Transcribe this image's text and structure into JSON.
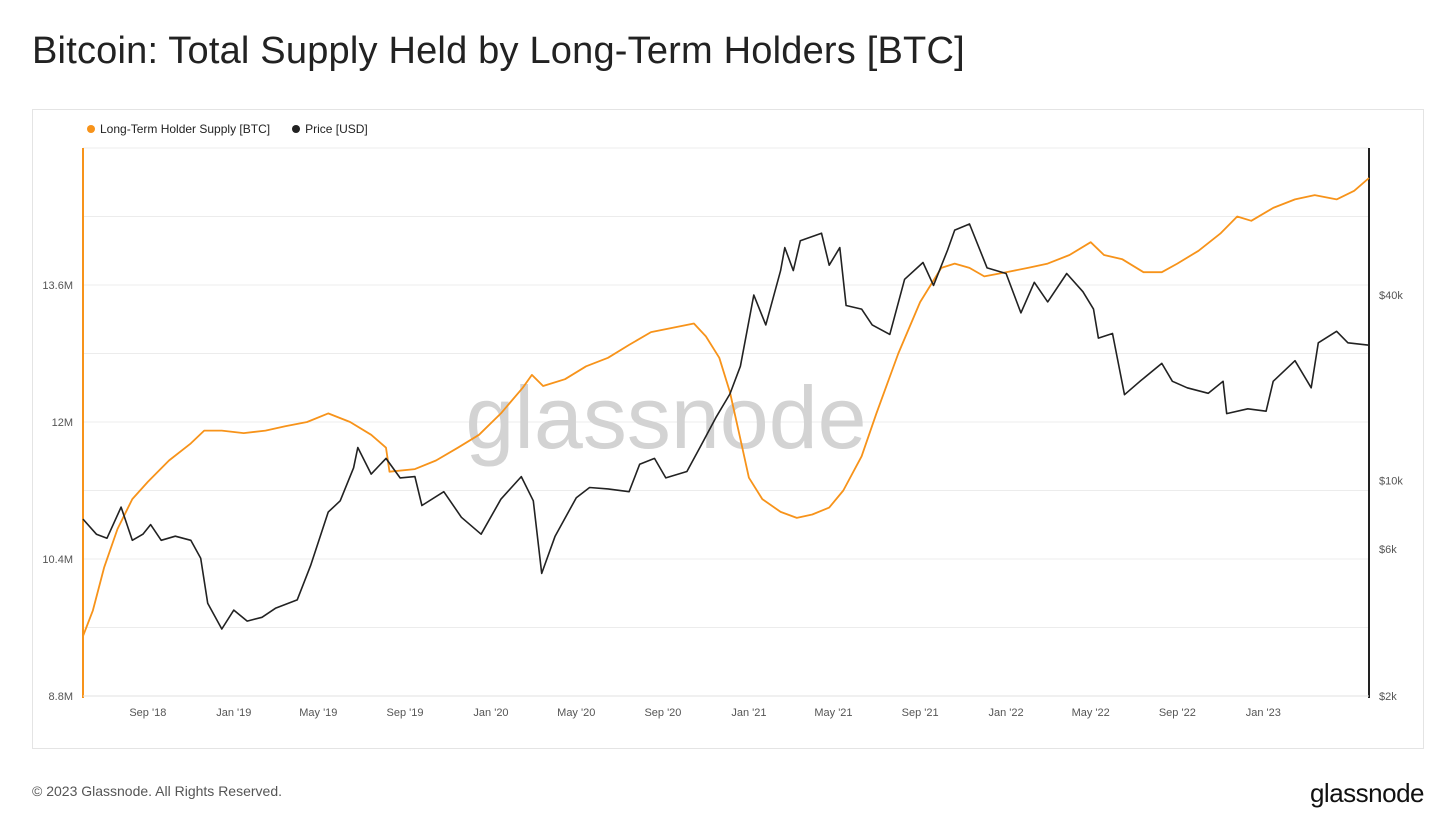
{
  "header": {
    "title": "Bitcoin: Total Supply Held by Long-Term Holders [BTC]"
  },
  "footer": {
    "copyright": "© 2023 Glassnode. All Rights Reserved.",
    "logo_text": "glassnode"
  },
  "chart_data": {
    "type": "line",
    "watermark": "glassnode",
    "legend_position": "top-left",
    "grid": true,
    "x_ticks": [
      "Sep '18",
      "Jan '19",
      "May '19",
      "Sep '19",
      "Jan '20",
      "May '20",
      "Sep '20",
      "Jan '21",
      "May '21",
      "Sep '21",
      "Jan '22",
      "May '22",
      "Sep '22",
      "Jan '23"
    ],
    "x_range": [
      "2018-06-01",
      "2023-05-31"
    ],
    "y_left": {
      "ticks": [
        "8.8M",
        "10.4M",
        "12M",
        "13.6M"
      ],
      "range": [
        8800000,
        15200000
      ],
      "color": "#f7931a"
    },
    "y_right": {
      "ticks": [
        "$2k",
        "$6k",
        "$10k",
        "$40k"
      ],
      "scale": "log",
      "range": [
        2000,
        120000
      ],
      "color": "#222222"
    },
    "series": [
      {
        "name": "Long-Term Holder Supply [BTC]",
        "color": "#f7931a",
        "axis": "left",
        "points": [
          [
            "2018-06-01",
            9.5
          ],
          [
            "2018-06-15",
            9.8
          ],
          [
            "2018-07-01",
            10.3
          ],
          [
            "2018-07-20",
            10.75
          ],
          [
            "2018-08-10",
            11.1
          ],
          [
            "2018-09-01",
            11.3
          ],
          [
            "2018-10-01",
            11.55
          ],
          [
            "2018-11-01",
            11.75
          ],
          [
            "2018-11-20",
            11.9
          ],
          [
            "2018-12-15",
            11.9
          ],
          [
            "2019-01-15",
            11.87
          ],
          [
            "2019-02-15",
            11.9
          ],
          [
            "2019-03-15",
            11.95
          ],
          [
            "2019-04-15",
            12.0
          ],
          [
            "2019-05-15",
            12.1
          ],
          [
            "2019-06-15",
            12.0
          ],
          [
            "2019-07-15",
            11.85
          ],
          [
            "2019-08-05",
            11.7
          ],
          [
            "2019-08-10",
            11.42
          ],
          [
            "2019-09-15",
            11.45
          ],
          [
            "2019-10-15",
            11.55
          ],
          [
            "2019-11-15",
            11.7
          ],
          [
            "2019-12-15",
            11.85
          ],
          [
            "2020-01-15",
            12.1
          ],
          [
            "2020-02-15",
            12.4
          ],
          [
            "2020-02-28",
            12.55
          ],
          [
            "2020-03-15",
            12.42
          ],
          [
            "2020-04-15",
            12.5
          ],
          [
            "2020-05-15",
            12.65
          ],
          [
            "2020-06-15",
            12.75
          ],
          [
            "2020-07-15",
            12.9
          ],
          [
            "2020-08-15",
            13.05
          ],
          [
            "2020-09-15",
            13.1
          ],
          [
            "2020-10-15",
            13.15
          ],
          [
            "2020-11-01",
            13.0
          ],
          [
            "2020-11-20",
            12.75
          ],
          [
            "2020-12-05",
            12.35
          ],
          [
            "2020-12-20",
            11.8
          ],
          [
            "2021-01-01",
            11.35
          ],
          [
            "2021-01-20",
            11.1
          ],
          [
            "2021-02-15",
            10.95
          ],
          [
            "2021-03-10",
            10.88
          ],
          [
            "2021-04-01",
            10.92
          ],
          [
            "2021-04-25",
            11.0
          ],
          [
            "2021-05-15",
            11.2
          ],
          [
            "2021-06-10",
            11.6
          ],
          [
            "2021-07-01",
            12.1
          ],
          [
            "2021-08-01",
            12.8
          ],
          [
            "2021-09-01",
            13.4
          ],
          [
            "2021-10-01",
            13.8
          ],
          [
            "2021-10-20",
            13.85
          ],
          [
            "2021-11-10",
            13.8
          ],
          [
            "2021-12-01",
            13.7
          ],
          [
            "2022-01-01",
            13.75
          ],
          [
            "2022-02-01",
            13.8
          ],
          [
            "2022-03-01",
            13.85
          ],
          [
            "2022-04-01",
            13.95
          ],
          [
            "2022-05-01",
            14.1
          ],
          [
            "2022-05-20",
            13.95
          ],
          [
            "2022-06-15",
            13.9
          ],
          [
            "2022-07-15",
            13.75
          ],
          [
            "2022-08-10",
            13.75
          ],
          [
            "2022-09-01",
            13.85
          ],
          [
            "2022-10-01",
            14.0
          ],
          [
            "2022-11-01",
            14.2
          ],
          [
            "2022-11-25",
            14.4
          ],
          [
            "2022-12-15",
            14.35
          ],
          [
            "2023-01-15",
            14.5
          ],
          [
            "2023-02-15",
            14.6
          ],
          [
            "2023-03-15",
            14.65
          ],
          [
            "2023-04-15",
            14.6
          ],
          [
            "2023-05-10",
            14.7
          ],
          [
            "2023-05-31",
            14.85
          ]
        ]
      },
      {
        "name": "Price [USD]",
        "color": "#222222",
        "axis": "right",
        "points": [
          [
            "2018-06-01",
            7500
          ],
          [
            "2018-06-20",
            6700
          ],
          [
            "2018-07-05",
            6500
          ],
          [
            "2018-07-25",
            8200
          ],
          [
            "2018-08-10",
            6400
          ],
          [
            "2018-08-25",
            6700
          ],
          [
            "2018-09-05",
            7200
          ],
          [
            "2018-09-20",
            6400
          ],
          [
            "2018-10-10",
            6600
          ],
          [
            "2018-11-01",
            6400
          ],
          [
            "2018-11-15",
            5600
          ],
          [
            "2018-11-25",
            4000
          ],
          [
            "2018-12-15",
            3300
          ],
          [
            "2019-01-01",
            3800
          ],
          [
            "2019-01-20",
            3500
          ],
          [
            "2019-02-10",
            3600
          ],
          [
            "2019-03-01",
            3850
          ],
          [
            "2019-04-01",
            4100
          ],
          [
            "2019-04-20",
            5300
          ],
          [
            "2019-05-15",
            7900
          ],
          [
            "2019-06-01",
            8600
          ],
          [
            "2019-06-20",
            11000
          ],
          [
            "2019-06-26",
            12800
          ],
          [
            "2019-07-15",
            10500
          ],
          [
            "2019-08-05",
            11800
          ],
          [
            "2019-08-25",
            10200
          ],
          [
            "2019-09-15",
            10300
          ],
          [
            "2019-09-25",
            8300
          ],
          [
            "2019-10-26",
            9200
          ],
          [
            "2019-11-20",
            7600
          ],
          [
            "2019-12-18",
            6700
          ],
          [
            "2020-01-15",
            8700
          ],
          [
            "2020-02-13",
            10300
          ],
          [
            "2020-03-01",
            8600
          ],
          [
            "2020-03-13",
            5000
          ],
          [
            "2020-04-01",
            6600
          ],
          [
            "2020-05-01",
            8800
          ],
          [
            "2020-05-20",
            9500
          ],
          [
            "2020-06-15",
            9400
          ],
          [
            "2020-07-15",
            9200
          ],
          [
            "2020-07-30",
            11300
          ],
          [
            "2020-08-20",
            11800
          ],
          [
            "2020-09-05",
            10200
          ],
          [
            "2020-10-05",
            10700
          ],
          [
            "2020-10-25",
            13000
          ],
          [
            "2020-11-15",
            16000
          ],
          [
            "2020-12-05",
            19100
          ],
          [
            "2020-12-20",
            23500
          ],
          [
            "2021-01-08",
            40000
          ],
          [
            "2021-01-25",
            32000
          ],
          [
            "2021-02-15",
            48000
          ],
          [
            "2021-02-21",
            57000
          ],
          [
            "2021-03-05",
            48000
          ],
          [
            "2021-03-15",
            60000
          ],
          [
            "2021-04-14",
            63500
          ],
          [
            "2021-04-25",
            50000
          ],
          [
            "2021-05-10",
            57000
          ],
          [
            "2021-05-19",
            37000
          ],
          [
            "2021-06-10",
            36000
          ],
          [
            "2021-06-25",
            32000
          ],
          [
            "2021-07-20",
            29800
          ],
          [
            "2021-08-10",
            45000
          ],
          [
            "2021-09-05",
            51000
          ],
          [
            "2021-09-20",
            43000
          ],
          [
            "2021-10-10",
            56000
          ],
          [
            "2021-10-20",
            65000
          ],
          [
            "2021-11-10",
            68000
          ],
          [
            "2021-12-05",
            49000
          ],
          [
            "2022-01-01",
            47000
          ],
          [
            "2022-01-22",
            35000
          ],
          [
            "2022-02-10",
            44000
          ],
          [
            "2022-03-01",
            38000
          ],
          [
            "2022-03-28",
            47000
          ],
          [
            "2022-04-20",
            41000
          ],
          [
            "2022-05-05",
            36000
          ],
          [
            "2022-05-12",
            29000
          ],
          [
            "2022-06-01",
            30000
          ],
          [
            "2022-06-18",
            19000
          ],
          [
            "2022-07-10",
            21000
          ],
          [
            "2022-08-10",
            24000
          ],
          [
            "2022-08-25",
            21000
          ],
          [
            "2022-09-15",
            20000
          ],
          [
            "2022-10-15",
            19200
          ],
          [
            "2022-11-05",
            21000
          ],
          [
            "2022-11-10",
            16500
          ],
          [
            "2022-12-10",
            17100
          ],
          [
            "2023-01-05",
            16800
          ],
          [
            "2023-01-15",
            21000
          ],
          [
            "2023-02-15",
            24500
          ],
          [
            "2023-03-10",
            20000
          ],
          [
            "2023-03-20",
            28000
          ],
          [
            "2023-04-15",
            30500
          ],
          [
            "2023-05-01",
            28000
          ],
          [
            "2023-05-31",
            27500
          ]
        ]
      }
    ]
  }
}
